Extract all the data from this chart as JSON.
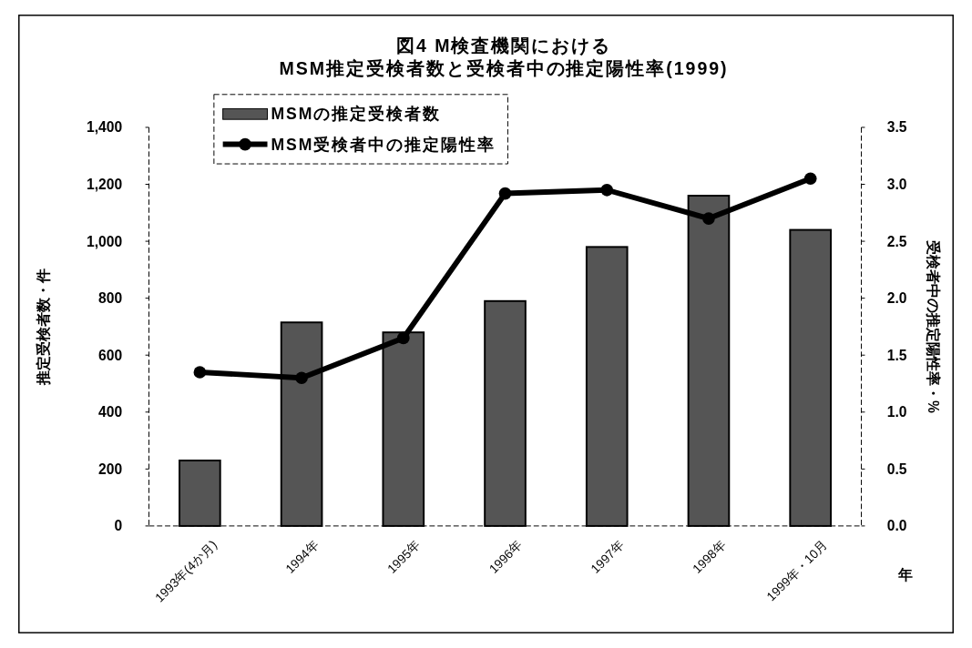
{
  "chart_data": {
    "type": "bar",
    "title": "図4 M検査機関における\nMSM推定受検者数と受検者中の推定陽性率(1999)",
    "xlabel": "年",
    "ylabel": "推定受検者数・件",
    "y2label": "受検者中の推定陽性率・%",
    "categories": [
      "1993年(4か月)",
      "1994年",
      "1995年",
      "1996年",
      "1997年",
      "1998年",
      "1999年・10月"
    ],
    "series": [
      {
        "name": "MSMの推定受検者数",
        "color": "#555555",
        "values": [
          230,
          715,
          680,
          790,
          980,
          1160,
          1040
        ]
      },
      {
        "name": "MSM受検者中の推定陽性率",
        "type": "line",
        "axis": "y2",
        "color": "#000000",
        "marker": "circle",
        "values": [
          1.35,
          1.3,
          1.65,
          2.92,
          2.95,
          2.7,
          3.05
        ]
      }
    ],
    "ylim": [
      0,
      1400
    ],
    "yticks": [
      0,
      200,
      400,
      600,
      800,
      {
        "value": 1000,
        "label": "1,000"
      },
      {
        "value": 1200,
        "label": "1,200"
      },
      {
        "value": 1400,
        "label": "1,400"
      }
    ],
    "y2lim": [
      0,
      3.5
    ],
    "y2ticks": [
      {
        "value": 0,
        "label": "0.0"
      },
      0.5,
      {
        "value": 1,
        "label": "1.0"
      },
      1.5,
      {
        "value": 2,
        "label": "2.0"
      },
      2.5,
      {
        "value": 3,
        "label": "3.0"
      },
      3.5
    ],
    "legend": "top left",
    "grid": false
  }
}
